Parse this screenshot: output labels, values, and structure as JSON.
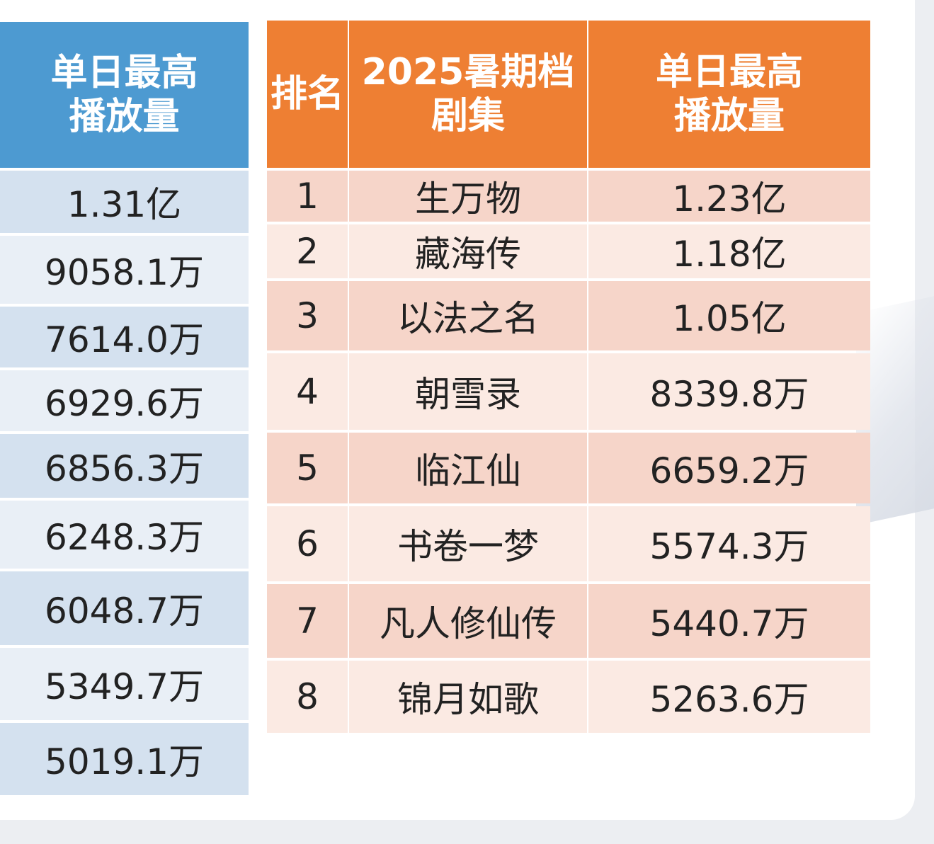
{
  "left_table": {
    "header_line1": "单日最高",
    "header_line2": "播放量",
    "values": [
      "1.31亿",
      "9058.1万",
      "7614.0万",
      "6929.6万",
      "6856.3万",
      "6248.3万",
      "6048.7万",
      "5349.7万",
      "5019.1万"
    ]
  },
  "right_table": {
    "headers": {
      "rank": "排名",
      "title_line1": "2025暑期档",
      "title_line2": "剧集",
      "value_line1": "单日最高",
      "value_line2": "播放量"
    },
    "rows": [
      {
        "rank": "1",
        "title": "生万物",
        "value": "1.23亿"
      },
      {
        "rank": "2",
        "title": "藏海传",
        "value": "1.18亿"
      },
      {
        "rank": "3",
        "title": "以法之名",
        "value": "1.05亿"
      },
      {
        "rank": "4",
        "title": "朝雪录",
        "value": "8339.8万"
      },
      {
        "rank": "5",
        "title": "临江仙",
        "value": "6659.2万"
      },
      {
        "rank": "6",
        "title": "书卷一梦",
        "value": "5574.3万"
      },
      {
        "rank": "7",
        "title": "凡人修仙传",
        "value": "5440.7万"
      },
      {
        "rank": "8",
        "title": "锦月如歌",
        "value": "5263.6万"
      }
    ]
  },
  "colors": {
    "blue_header": "#4d9ad1",
    "orange_header": "#ee7f33",
    "blue_row_dark": "#d4e1ef",
    "blue_row_light": "#e9eff6",
    "orange_row_dark": "#f6d5c9",
    "orange_row_light": "#fbeae3"
  }
}
